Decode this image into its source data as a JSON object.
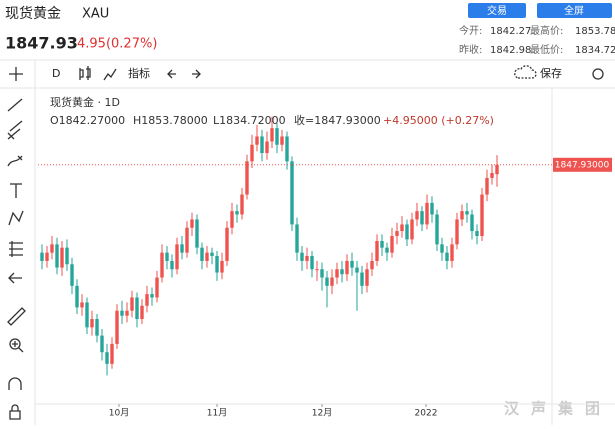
{
  "header": {
    "title": "现货黄金",
    "symbol": "XAU",
    "price": 1847.93,
    "change": "4.95(0.27%)",
    "buttons": [
      "交易",
      "全屏"
    ],
    "stats": [
      {
        "label": "今开:",
        "value": 1842.27
      },
      {
        "label": "最高价:",
        "value": 1853.78
      },
      {
        "label": "昨收:",
        "value": 1842.98
      },
      {
        "label": "最低价:",
        "value": 1834.72
      }
    ]
  },
  "toolbar": {
    "interval": "D",
    "indicators": "指标",
    "save": "保存"
  },
  "legend": {
    "name": "现货黄金 · 1D",
    "open": "O1842.27000",
    "high": "H1853.78000",
    "low": "L1834.72000",
    "close": "收=1847.93000",
    "change": "+4.95000 (+0.27%)"
  },
  "watermark": "汉声集团",
  "chart_data": {
    "type": "candlestick",
    "up_color": "#ef5350",
    "down_color": "#26a69a",
    "last_price_label": "1847.93000",
    "ylim": [
      1705,
      1893
    ],
    "xticks": [
      {
        "value": 15.4,
        "label": "10月"
      },
      {
        "value": 35,
        "label": "11月"
      },
      {
        "value": 56,
        "label": "12月"
      },
      {
        "value": 76.8,
        "label": "2022"
      }
    ],
    "open": [
      1795,
      1790,
      1795,
      1800,
      1786,
      1798,
      1788,
      1775,
      1762,
      1765,
      1750,
      1755,
      1745,
      1735,
      1728,
      1740,
      1760,
      1757,
      1760,
      1768,
      1755,
      1763,
      1770,
      1768,
      1780,
      1795,
      1790,
      1785,
      1800,
      1795,
      1810,
      1815,
      1798,
      1790,
      1795,
      1793,
      1783,
      1790,
      1810,
      1820,
      1818,
      1830,
      1850,
      1860,
      1865,
      1855,
      1862,
      1870,
      1860,
      1865,
      1850,
      1812,
      1795,
      1790,
      1793,
      1785,
      1785,
      1780,
      1775,
      1780,
      1785,
      1782,
      1790,
      1786,
      1783,
      1775,
      1785,
      1790,
      1802,
      1798,
      1795,
      1805,
      1808,
      1812,
      1803,
      1815,
      1820,
      1812,
      1825,
      1818,
      1800,
      1795,
      1790,
      1800,
      1815,
      1820,
      1818,
      1808,
      1805,
      1830,
      1840,
      1842.27
    ],
    "high": [
      1800,
      1799,
      1805,
      1804,
      1802,
      1803,
      1792,
      1779,
      1770,
      1768,
      1760,
      1758,
      1749,
      1740,
      1744,
      1764,
      1766,
      1765,
      1772,
      1771,
      1767,
      1775,
      1774,
      1784,
      1800,
      1799,
      1794,
      1804,
      1805,
      1814,
      1819,
      1818,
      1801,
      1799,
      1798,
      1796,
      1795,
      1814,
      1825,
      1824,
      1834,
      1854,
      1866,
      1872,
      1869,
      1868,
      1877,
      1873,
      1869,
      1868,
      1853,
      1816,
      1799,
      1798,
      1796,
      1790,
      1789,
      1784,
      1785,
      1789,
      1790,
      1794,
      1795,
      1790,
      1787,
      1789,
      1795,
      1806,
      1806,
      1801,
      1810,
      1813,
      1817,
      1815,
      1819,
      1825,
      1823,
      1830,
      1829,
      1821,
      1804,
      1799,
      1804,
      1819,
      1824,
      1825,
      1821,
      1812,
      1834,
      1845,
      1848,
      1853.78
    ],
    "low": [
      1785,
      1786,
      1791,
      1782,
      1781,
      1784,
      1770,
      1758,
      1757,
      1746,
      1745,
      1741,
      1730,
      1721,
      1725,
      1737,
      1752,
      1753,
      1756,
      1750,
      1752,
      1759,
      1763,
      1765,
      1777,
      1785,
      1780,
      1782,
      1791,
      1792,
      1805,
      1794,
      1785,
      1786,
      1788,
      1778,
      1779,
      1787,
      1806,
      1813,
      1815,
      1827,
      1846,
      1856,
      1850,
      1851,
      1858,
      1855,
      1856,
      1845,
      1808,
      1790,
      1784,
      1785,
      1780,
      1778,
      1772,
      1762,
      1770,
      1776,
      1777,
      1778,
      1781,
      1760,
      1770,
      1771,
      1781,
      1787,
      1793,
      1790,
      1792,
      1800,
      1804,
      1799,
      1800,
      1811,
      1808,
      1809,
      1813,
      1796,
      1790,
      1785,
      1786,
      1797,
      1811,
      1813,
      1803,
      1800,
      1802,
      1826,
      1836,
      1834.72
    ],
    "close": [
      1790,
      1795,
      1800,
      1786,
      1798,
      1788,
      1775,
      1762,
      1765,
      1750,
      1755,
      1745,
      1735,
      1728,
      1740,
      1760,
      1757,
      1760,
      1768,
      1755,
      1763,
      1770,
      1768,
      1780,
      1795,
      1790,
      1785,
      1800,
      1795,
      1810,
      1815,
      1798,
      1790,
      1795,
      1793,
      1783,
      1790,
      1810,
      1820,
      1818,
      1830,
      1850,
      1860,
      1865,
      1855,
      1862,
      1870,
      1860,
      1865,
      1850,
      1812,
      1795,
      1790,
      1793,
      1785,
      1785,
      1780,
      1775,
      1780,
      1785,
      1782,
      1790,
      1786,
      1783,
      1775,
      1785,
      1790,
      1802,
      1798,
      1795,
      1805,
      1808,
      1812,
      1803,
      1815,
      1820,
      1812,
      1825,
      1818,
      1800,
      1795,
      1790,
      1800,
      1815,
      1820,
      1818,
      1808,
      1805,
      1830,
      1840,
      1842.98,
      1847.93
    ]
  }
}
